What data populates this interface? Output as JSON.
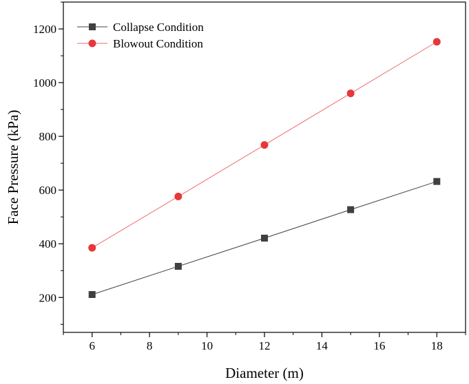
{
  "chart_data": {
    "type": "line",
    "title": "",
    "xlabel": "Diameter (m)",
    "ylabel": "Face Pressure (kPa)",
    "xlim": [
      5,
      19
    ],
    "ylim": [
      70,
      1300
    ],
    "xticks": [
      6,
      8,
      10,
      12,
      14,
      16,
      18
    ],
    "yticks": [
      200,
      400,
      600,
      800,
      1000,
      1200
    ],
    "x": [
      6,
      9,
      12,
      15,
      18
    ],
    "series": [
      {
        "name": "Collapse Condition",
        "values": [
          211,
          316,
          421,
          527,
          632
        ],
        "color": "#404040",
        "marker": "square"
      },
      {
        "name": "Blowout Condition",
        "values": [
          385,
          576,
          768,
          960,
          1152
        ],
        "color": "#e8373b",
        "line_color": "#ef6a6e",
        "marker": "circle"
      }
    ],
    "legend_position": "top-left",
    "grid": false
  }
}
